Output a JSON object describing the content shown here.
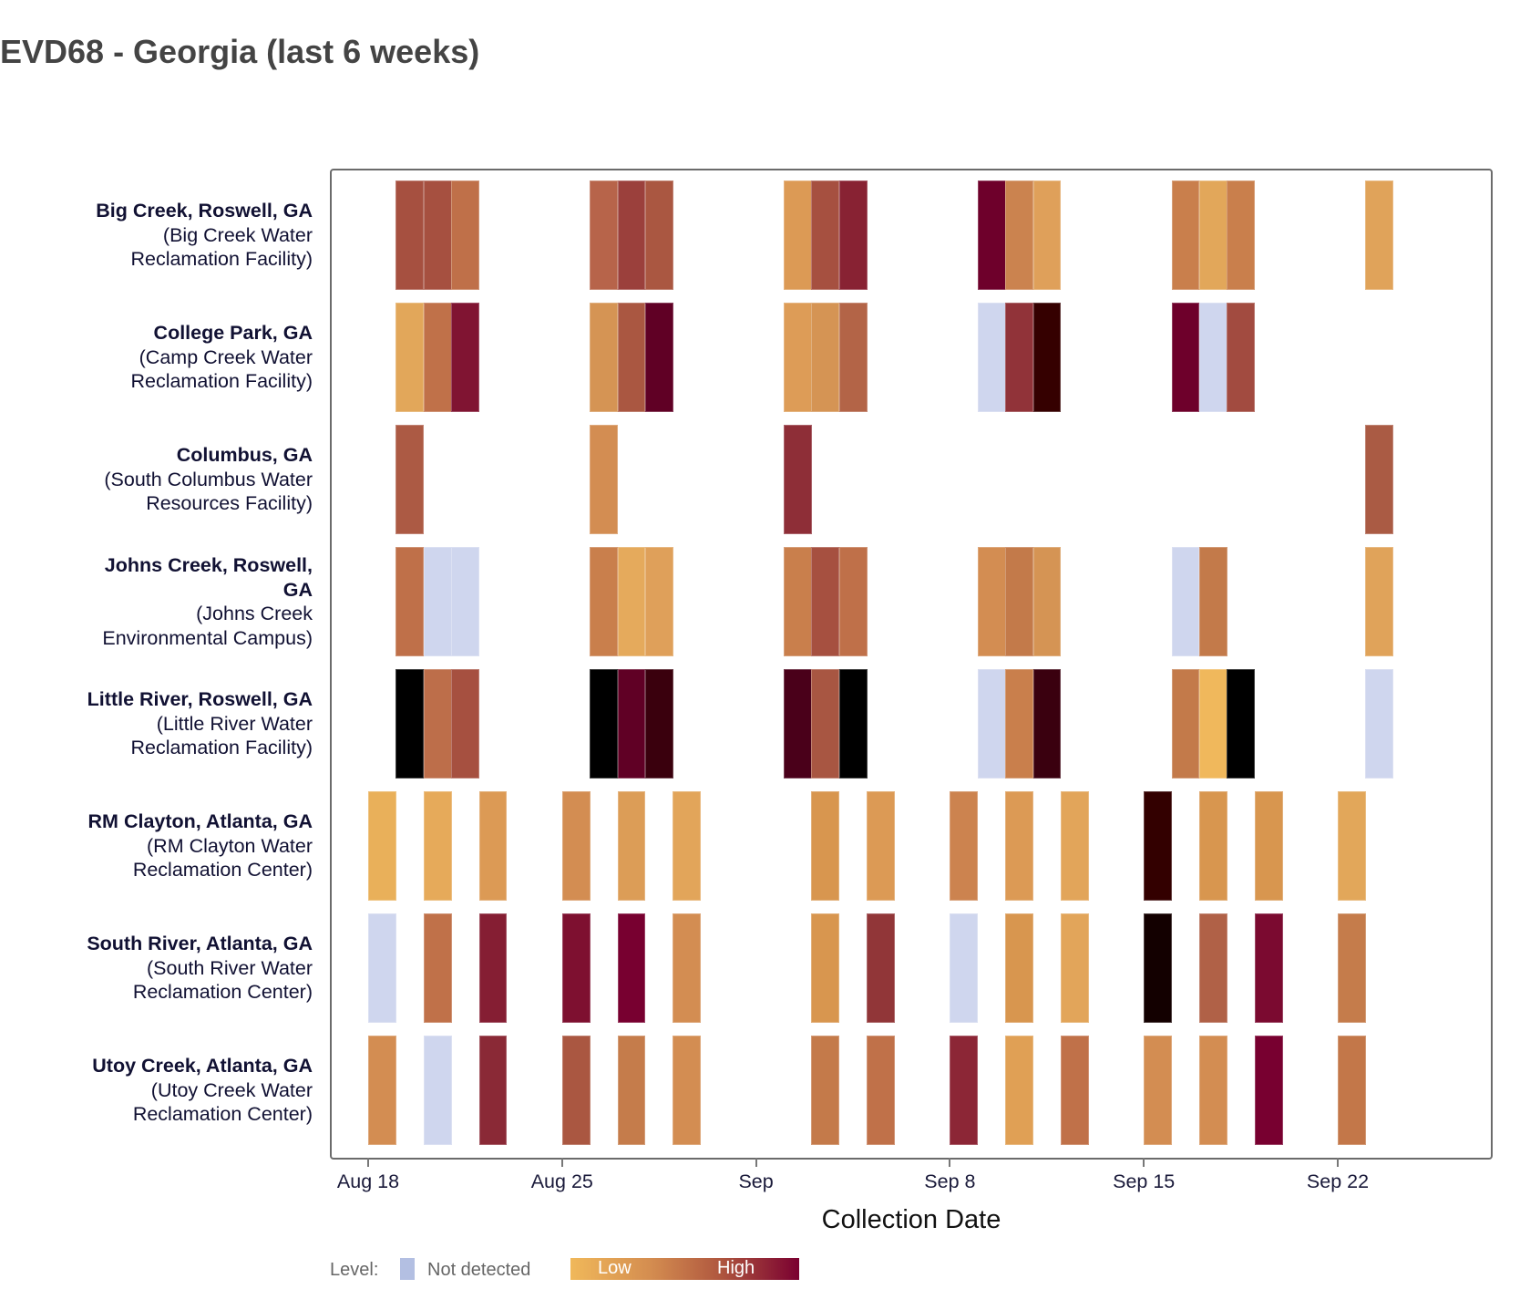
{
  "title": "EVD68 - Georgia (last 6 weeks)",
  "chart_data": {
    "type": "heatmap",
    "title": "EVD68 - Georgia (last 6 weeks)",
    "xlabel": "Collection Date",
    "ylabel": "",
    "x_ticks": [
      "Aug 18",
      "Aug 25",
      "Sep",
      "Sep 8",
      "Sep 15",
      "Sep 22"
    ],
    "x_range": [
      "Aug 18",
      "Sep 26"
    ],
    "not_detected_color": "#cfd6ee",
    "legend": {
      "label": "Level:",
      "not_detected": "Not detected",
      "low": "Low",
      "high": "High",
      "placement": "bottom-left"
    },
    "rows": [
      {
        "name_lines": [
          "Big Creek, Roswell, GA"
        ],
        "facility_lines": [
          "(Big Creek Water",
          "Reclamation Facility)"
        ],
        "cells": [
          [
            "Aug 19",
            "#a65040"
          ],
          [
            "Aug 20",
            "#a65040"
          ],
          [
            "Aug 21",
            "#bf7049"
          ],
          [
            "Aug 26",
            "#b7644a"
          ],
          [
            "Aug 27",
            "#9b403c"
          ],
          [
            "Aug 28",
            "#aa5741"
          ],
          [
            "Sep 2",
            "#dc9a55"
          ],
          [
            "Sep 3",
            "#a65040"
          ],
          [
            "Sep 4",
            "#882233"
          ],
          [
            "Sep 9",
            "#6e002b"
          ],
          [
            "Sep 10",
            "#cb834f"
          ],
          [
            "Sep 11",
            "#dfa05a"
          ],
          [
            "Sep 16",
            "#c97f4c"
          ],
          [
            "Sep 17",
            "#e2a75a"
          ],
          [
            "Sep 18",
            "#c97f4c"
          ],
          [
            "Sep 23",
            "#e0a35a"
          ]
        ]
      },
      {
        "name_lines": [
          "College Park, GA"
        ],
        "facility_lines": [
          "(Camp Creek Water",
          "Reclamation Facility)"
        ],
        "cells": [
          [
            "Aug 19",
            "#e2a75a"
          ],
          [
            "Aug 20",
            "#c07149"
          ],
          [
            "Aug 21",
            "#801432"
          ],
          [
            "Aug 26",
            "#d59454"
          ],
          [
            "Aug 27",
            "#aa5741"
          ],
          [
            "Aug 28",
            "#600025"
          ],
          [
            "Sep 2",
            "#dd9c57"
          ],
          [
            "Sep 3",
            "#d59454"
          ],
          [
            "Sep 4",
            "#b36447"
          ],
          [
            "Sep 9",
            "nd"
          ],
          [
            "Sep 10",
            "#913339"
          ],
          [
            "Sep 11",
            "#350000"
          ],
          [
            "Sep 16",
            "#6e002b"
          ],
          [
            "Sep 17",
            "nd"
          ],
          [
            "Sep 18",
            "#a24b40"
          ]
        ]
      },
      {
        "name_lines": [
          "Columbus, GA"
        ],
        "facility_lines": [
          "(South Columbus Water",
          "Resources Facility)"
        ],
        "cells": [
          [
            "Aug 19",
            "#ac5a44"
          ],
          [
            "Aug 26",
            "#d38d52"
          ],
          [
            "Sep 2",
            "#8e2e37"
          ],
          [
            "Sep 23",
            "#aa5b44"
          ]
        ]
      },
      {
        "name_lines": [
          "Johns Creek, Roswell,",
          "GA"
        ],
        "facility_lines": [
          "(Johns Creek",
          "Environmental Campus)"
        ],
        "cells": [
          [
            "Aug 19",
            "#bf7049"
          ],
          [
            "Aug 20",
            "nd"
          ],
          [
            "Aug 21",
            "nd"
          ],
          [
            "Aug 26",
            "#c97f4c"
          ],
          [
            "Aug 27",
            "#e5aa5c"
          ],
          [
            "Aug 28",
            "#dfa05a"
          ],
          [
            "Sep 2",
            "#c97f4c"
          ],
          [
            "Sep 3",
            "#a65040"
          ],
          [
            "Sep 4",
            "#bf7049"
          ],
          [
            "Sep 9",
            "#d38d52"
          ],
          [
            "Sep 10",
            "#c37a4a"
          ],
          [
            "Sep 11",
            "#d59454"
          ],
          [
            "Sep 16",
            "nd"
          ],
          [
            "Sep 17",
            "#c37a4a"
          ],
          [
            "Sep 23",
            "#e0a35a"
          ]
        ]
      },
      {
        "name_lines": [
          "Little River, Roswell, GA"
        ],
        "facility_lines": [
          "(Little River Water",
          "Reclamation Facility)"
        ],
        "cells": [
          [
            "Aug 19",
            "#000000"
          ],
          [
            "Aug 20",
            "#bd6e4a"
          ],
          [
            "Aug 21",
            "#a65040"
          ],
          [
            "Aug 26",
            "#000000"
          ],
          [
            "Aug 27",
            "#600025"
          ],
          [
            "Aug 28",
            "#3a000d"
          ],
          [
            "Sep 2",
            "#4a001a"
          ],
          [
            "Sep 3",
            "#a85642"
          ],
          [
            "Sep 4",
            "#000000"
          ],
          [
            "Sep 9",
            "nd"
          ],
          [
            "Sep 10",
            "#c97f4c"
          ],
          [
            "Sep 11",
            "#3a000f"
          ],
          [
            "Sep 16",
            "#c37a4a"
          ],
          [
            "Sep 17",
            "#f0b85c"
          ],
          [
            "Sep 18",
            "#000000"
          ],
          [
            "Sep 23",
            "nd"
          ]
        ]
      },
      {
        "name_lines": [
          "RM Clayton, Atlanta, GA"
        ],
        "facility_lines": [
          "(RM Clayton Water",
          "Reclamation Center)"
        ],
        "cells": [
          [
            "Aug 18",
            "#e9b05a"
          ],
          [
            "Aug 20",
            "#e6aa5a"
          ],
          [
            "Aug 22",
            "#dc9a55"
          ],
          [
            "Aug 25",
            "#d38d52"
          ],
          [
            "Aug 27",
            "#dc9d57"
          ],
          [
            "Aug 29",
            "#e2a55a"
          ],
          [
            "Sep 3",
            "#d8964f"
          ],
          [
            "Sep 5",
            "#dc9a55"
          ],
          [
            "Sep 8",
            "#cc834f"
          ],
          [
            "Sep 10",
            "#dc9a55"
          ],
          [
            "Sep 12",
            "#e2a55a"
          ],
          [
            "Sep 15",
            "#330000"
          ],
          [
            "Sep 17",
            "#d8964f"
          ],
          [
            "Sep 19",
            "#d8964f"
          ],
          [
            "Sep 22",
            "#e2a75a"
          ]
        ]
      },
      {
        "name_lines": [
          "South River, Atlanta, GA"
        ],
        "facility_lines": [
          "(South River Water",
          "Reclamation Center)"
        ],
        "cells": [
          [
            "Aug 18",
            "nd"
          ],
          [
            "Aug 20",
            "#c07149"
          ],
          [
            "Aug 22",
            "#851e33"
          ],
          [
            "Aug 25",
            "#7e1030"
          ],
          [
            "Aug 27",
            "#780030"
          ],
          [
            "Aug 29",
            "#d38d52"
          ],
          [
            "Sep 3",
            "#d8964f"
          ],
          [
            "Sep 5",
            "#913638"
          ],
          [
            "Sep 8",
            "nd"
          ],
          [
            "Sep 10",
            "#d8964f"
          ],
          [
            "Sep 12",
            "#e2a55a"
          ],
          [
            "Sep 15",
            "#130000"
          ],
          [
            "Sep 17",
            "#b06147"
          ],
          [
            "Sep 19",
            "#7b0a30"
          ],
          [
            "Sep 22",
            "#c57c4b"
          ]
        ]
      },
      {
        "name_lines": [
          "Utoy Creek, Atlanta, GA"
        ],
        "facility_lines": [
          "(Utoy Creek Water",
          "Reclamation Center)"
        ],
        "cells": [
          [
            "Aug 18",
            "#d38d52"
          ],
          [
            "Aug 20",
            "nd"
          ],
          [
            "Aug 22",
            "#8a2936"
          ],
          [
            "Aug 25",
            "#aa5741"
          ],
          [
            "Aug 27",
            "#c57c4b"
          ],
          [
            "Aug 29",
            "#d38d52"
          ],
          [
            "Sep 3",
            "#c47a4a"
          ],
          [
            "Sep 5",
            "#c07149"
          ],
          [
            "Sep 8",
            "#8c2636"
          ],
          [
            "Sep 10",
            "#e0a055"
          ],
          [
            "Sep 12",
            "#c07149"
          ],
          [
            "Sep 15",
            "#d38d52"
          ],
          [
            "Sep 17",
            "#d38d52"
          ],
          [
            "Sep 19",
            "#780030"
          ],
          [
            "Sep 22",
            "#c37749"
          ]
        ]
      }
    ]
  }
}
